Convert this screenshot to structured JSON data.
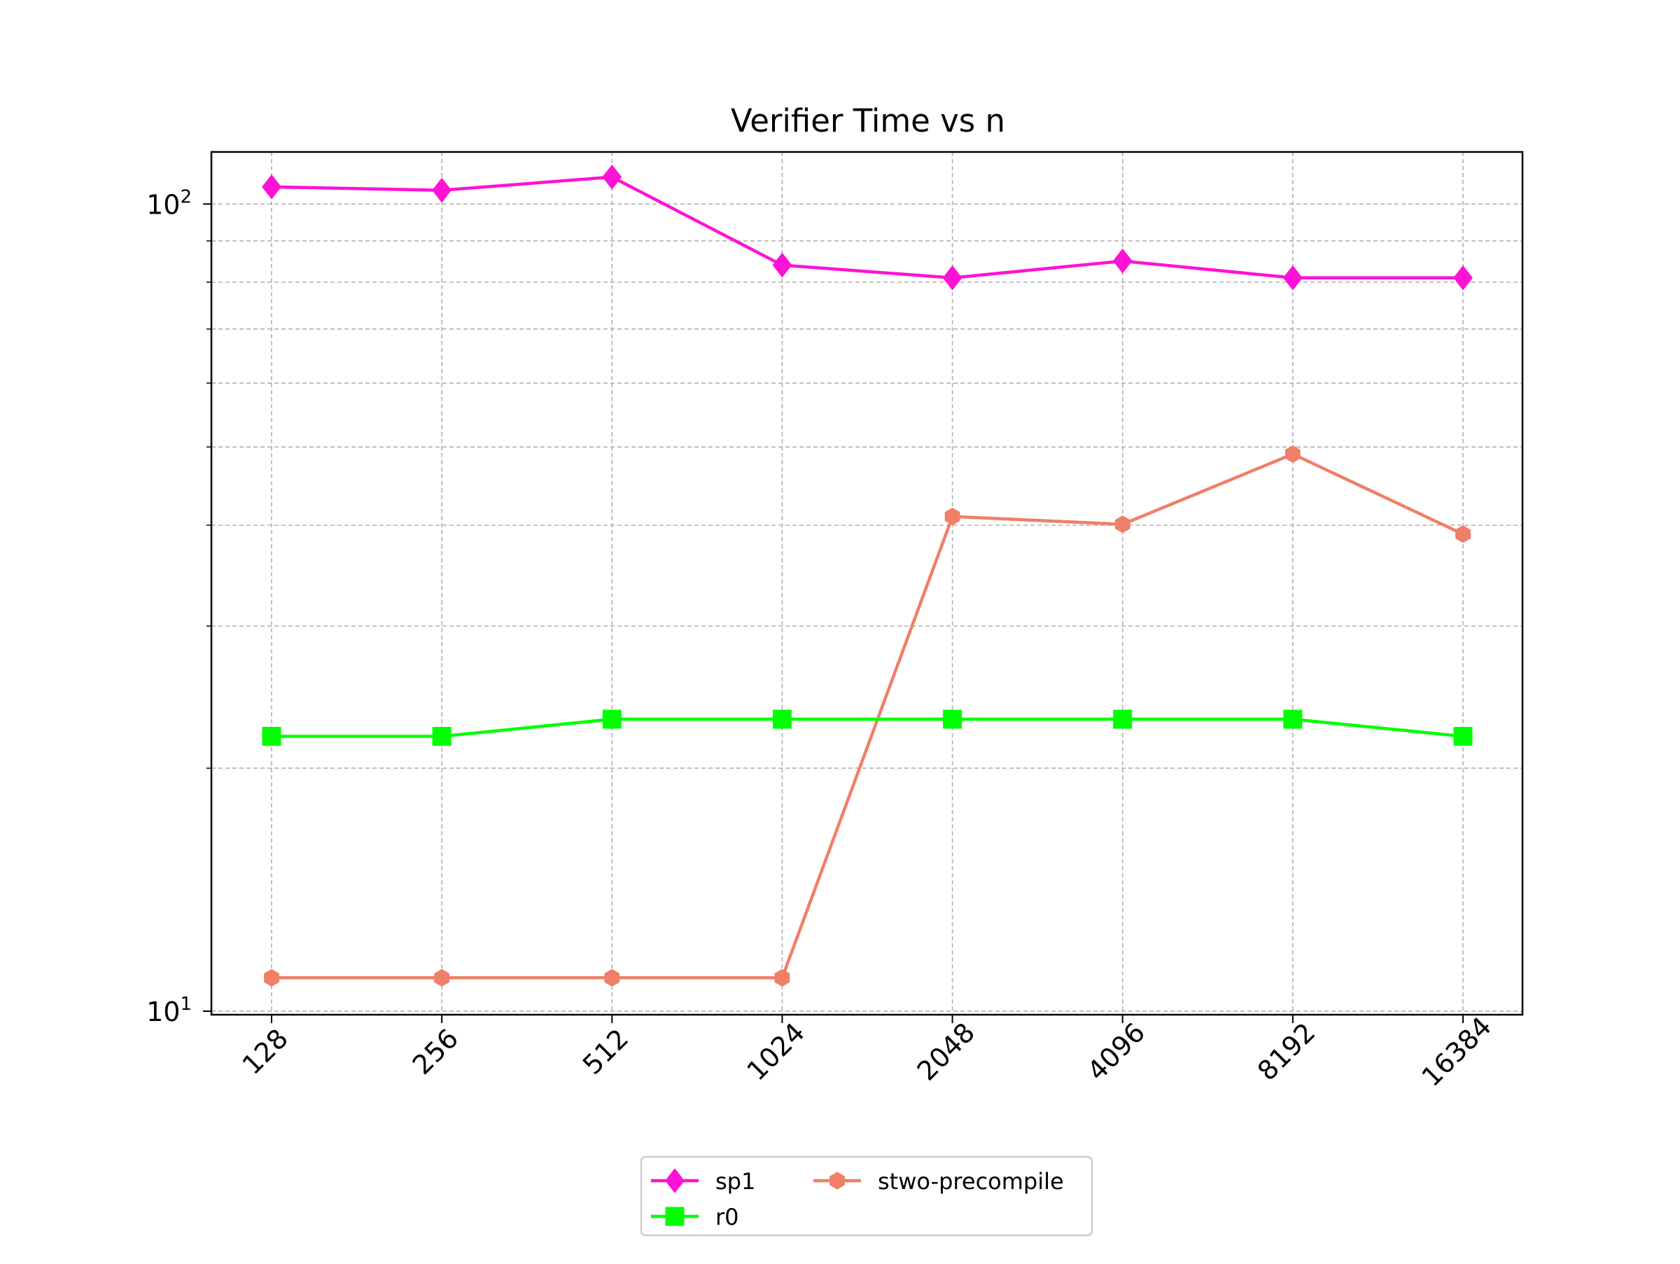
{
  "chart_data": {
    "type": "line",
    "title": "Verifier Time vs n",
    "xlabel": "",
    "ylabel": "",
    "categories": [
      "128",
      "256",
      "512",
      "1024",
      "2048",
      "4096",
      "8192",
      "16384"
    ],
    "yscale": "log",
    "ylim": [
      9.9,
      116
    ],
    "yticks": [
      {
        "value": 10,
        "base": "10",
        "exp": "1"
      },
      {
        "value": 100,
        "base": "10",
        "exp": "2"
      }
    ],
    "grid": true,
    "legend_placement": "bottom-center, below axes",
    "series": [
      {
        "name": "sp1",
        "color": "#ff11d6",
        "marker": "diamond",
        "values": [
          105,
          104,
          108,
          84,
          81,
          85,
          81,
          81
        ]
      },
      {
        "name": "r0",
        "color": "#00ff00",
        "marker": "square",
        "values": [
          21.9,
          21.9,
          23.0,
          23.0,
          23.0,
          23.0,
          23.0,
          21.9
        ]
      },
      {
        "name": "stwo-precompile",
        "color": "#f07f68",
        "marker": "hexagon",
        "values": [
          11.0,
          11.0,
          11.0,
          11.0,
          41.0,
          40.1,
          49.0,
          39.0
        ]
      }
    ]
  }
}
